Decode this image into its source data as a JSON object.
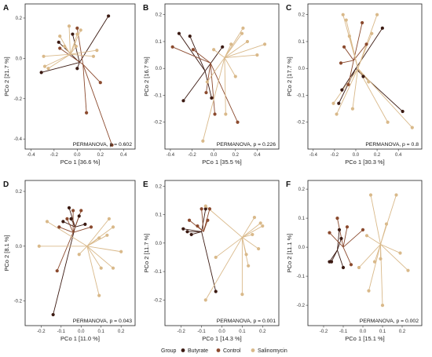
{
  "colors": {
    "Butyrate": "#3b1a12",
    "Control": "#8b4a2e",
    "Salinomycin": "#d9b98a"
  },
  "legend": {
    "title": "Group",
    "items": [
      "Butyrate",
      "Control",
      "Salinomycin"
    ]
  },
  "chart_data": [
    {
      "type": "scatter",
      "letter": "A",
      "xlabel": "PCo 1 [36.6 %]",
      "ylabel": "PCo 2 [21.7 %]",
      "annotation": "PERMANOVA, p = 0.602",
      "xlim": [
        -0.45,
        0.5
      ],
      "ylim": [
        -0.45,
        0.27
      ],
      "xticks": [
        -0.4,
        -0.2,
        0.0,
        0.2,
        0.4
      ],
      "xtick_labels": [
        "-0.4",
        "-0.2",
        "0.0",
        "0.2",
        "0.4"
      ],
      "yticks": [
        -0.4,
        -0.2,
        0.0,
        0.2
      ],
      "ytick_labels": [
        "-0.4",
        "-0.2",
        "0.0",
        "0.2"
      ],
      "groups": [
        {
          "name": "Butyrate",
          "centroid": [
            0.02,
            -0.02
          ],
          "points": [
            [
              0.27,
              0.21
            ],
            [
              -0.04,
              0.12
            ],
            [
              -0.31,
              -0.07
            ],
            [
              -0.16,
              0.08
            ],
            [
              0.0,
              -0.05
            ]
          ]
        },
        {
          "name": "Control",
          "centroid": [
            0.05,
            -0.03
          ],
          "points": [
            [
              0.3,
              -0.43
            ],
            [
              0.0,
              0.15
            ],
            [
              -0.15,
              0.05
            ],
            [
              0.08,
              -0.27
            ],
            [
              0.2,
              -0.12
            ]
          ]
        },
        {
          "name": "Salinomycin",
          "centroid": [
            -0.06,
            0.02
          ],
          "points": [
            [
              -0.25,
              -0.05
            ],
            [
              -0.28,
              -0.04
            ],
            [
              -0.15,
              0.11
            ],
            [
              -0.07,
              0.16
            ],
            [
              0.0,
              0.12
            ],
            [
              0.03,
              0.14
            ],
            [
              0.14,
              0.01
            ],
            [
              0.17,
              0.04
            ],
            [
              -0.11,
              0.06
            ],
            [
              -0.01,
              0.06
            ],
            [
              -0.29,
              0.01
            ]
          ]
        }
      ]
    },
    {
      "type": "scatter",
      "letter": "B",
      "xlabel": "PCo 1 [35.5 %]",
      "ylabel": "PCo 2 [16.7 %]",
      "annotation": "PERMANOVA, p = 0.226",
      "xlim": [
        -0.45,
        0.6
      ],
      "ylim": [
        -0.3,
        0.24
      ],
      "xticks": [
        -0.4,
        -0.2,
        0.0,
        0.2,
        0.4
      ],
      "xtick_labels": [
        "-0.4",
        "-0.2",
        "0.0",
        "0.2",
        "0.4"
      ],
      "yticks": [
        -0.2,
        -0.1,
        0.0,
        0.1,
        0.2
      ],
      "ytick_labels": [
        "-0.2",
        "-0.1",
        "0.0",
        "0.1",
        "0.2"
      ],
      "groups": [
        {
          "name": "Butyrate",
          "centroid": [
            -0.08,
            -0.01
          ],
          "points": [
            [
              -0.32,
              0.13
            ],
            [
              -0.28,
              -0.12
            ],
            [
              -0.22,
              0.12
            ],
            [
              0.08,
              0.08
            ],
            [
              -0.02,
              -0.11
            ]
          ]
        },
        {
          "name": "Control",
          "centroid": [
            -0.03,
            0.02
          ],
          "points": [
            [
              -0.38,
              0.08
            ],
            [
              -0.19,
              0.07
            ],
            [
              0.22,
              -0.2
            ],
            [
              0.01,
              -0.17
            ],
            [
              -0.07,
              -0.09
            ]
          ]
        },
        {
          "name": "Salinomycin",
          "centroid": [
            0.1,
            0.04
          ],
          "points": [
            [
              0.47,
              0.09
            ],
            [
              0.26,
              0.13
            ],
            [
              0.2,
              -0.03
            ],
            [
              0.11,
              -0.17
            ],
            [
              -0.1,
              -0.27
            ],
            [
              0.27,
              0.15
            ],
            [
              0.0,
              0.07
            ],
            [
              0.4,
              0.05
            ],
            [
              0.31,
              0.1
            ],
            [
              -0.06,
              -0.05
            ],
            [
              0.16,
              0.09
            ]
          ]
        }
      ]
    },
    {
      "type": "scatter",
      "letter": "C",
      "xlabel": "PCo 1 [30.3 %]",
      "ylabel": "PCo 2 [17.7 %]",
      "annotation": "PERMANOVA, p = 0.8",
      "xlim": [
        -0.45,
        0.62
      ],
      "ylim": [
        -0.3,
        0.24
      ],
      "xticks": [
        -0.4,
        -0.2,
        0.0,
        0.2,
        0.4
      ],
      "xtick_labels": [
        "-0.4",
        "-0.2",
        "0.0",
        "0.2",
        "0.4"
      ],
      "yticks": [
        -0.2,
        -0.1,
        0.0,
        0.1,
        0.2
      ],
      "ytick_labels": [
        "-0.2",
        "-0.1",
        "0.0",
        "0.1",
        "0.2"
      ],
      "groups": [
        {
          "name": "Butyrate",
          "centroid": [
            0.0,
            0.0
          ],
          "points": [
            [
              -0.16,
              -0.13
            ],
            [
              -0.13,
              -0.08
            ],
            [
              0.25,
              0.15
            ],
            [
              0.44,
              -0.16
            ],
            [
              0.07,
              -0.03
            ]
          ]
        },
        {
          "name": "Control",
          "centroid": [
            -0.02,
            0.03
          ],
          "points": [
            [
              0.06,
              0.17
            ],
            [
              -0.11,
              0.08
            ],
            [
              -0.07,
              -0.06
            ],
            [
              0.1,
              0.09
            ],
            [
              -0.14,
              0.02
            ]
          ]
        },
        {
          "name": "Salinomycin",
          "centroid": [
            0.02,
            0.0
          ],
          "points": [
            [
              0.53,
              -0.22
            ],
            [
              0.2,
              0.2
            ],
            [
              0.15,
              0.13
            ],
            [
              -0.12,
              0.2
            ],
            [
              -0.09,
              0.18
            ],
            [
              -0.21,
              -0.13
            ],
            [
              -0.18,
              -0.17
            ],
            [
              0.12,
              -0.05
            ],
            [
              0.3,
              -0.2
            ],
            [
              -0.06,
              0.12
            ],
            [
              -0.03,
              -0.15
            ]
          ]
        }
      ]
    },
    {
      "type": "scatter",
      "letter": "D",
      "xlabel": "PCo 1 [11.0 %]",
      "ylabel": "PCo 2 [8.1 %]",
      "annotation": "PERMANOVA, p = 0.043",
      "xlim": [
        -0.28,
        0.27
      ],
      "ylim": [
        -0.29,
        0.24
      ],
      "xticks": [
        -0.2,
        -0.1,
        0.0,
        0.1,
        0.2
      ],
      "xtick_labels": [
        "-0.2",
        "-0.1",
        "0.0",
        "0.1",
        "0.2"
      ],
      "yticks": [
        -0.2,
        0.0,
        0.2
      ],
      "ytick_labels": [
        "-0.2",
        "0.0",
        "0.2"
      ],
      "groups": [
        {
          "name": "Butyrate",
          "centroid": [
            -0.03,
            0.07
          ],
          "points": [
            [
              -0.06,
              0.14
            ],
            [
              -0.09,
              0.09
            ],
            [
              -0.05,
              0.1
            ],
            [
              -0.01,
              0.11
            ],
            [
              0.02,
              0.08
            ],
            [
              -0.14,
              -0.25
            ]
          ]
        },
        {
          "name": "Control",
          "centroid": [
            -0.04,
            0.05
          ],
          "points": [
            [
              -0.11,
              0.07
            ],
            [
              -0.04,
              0.13
            ],
            [
              -0.07,
              0.1
            ],
            [
              0.0,
              0.13
            ],
            [
              0.05,
              0.07
            ],
            [
              -0.12,
              -0.09
            ]
          ]
        },
        {
          "name": "Salinomycin",
          "centroid": [
            0.03,
            0.0
          ],
          "points": [
            [
              -0.17,
              0.09
            ],
            [
              -0.21,
              0.0
            ],
            [
              0.14,
              0.1
            ],
            [
              0.2,
              -0.02
            ],
            [
              0.1,
              -0.08
            ],
            [
              0.16,
              -0.08
            ],
            [
              0.09,
              0.03
            ],
            [
              0.09,
              -0.18
            ],
            [
              0.16,
              0.07
            ],
            [
              -0.01,
              -0.03
            ],
            [
              0.13,
              0.04
            ]
          ]
        }
      ]
    },
    {
      "type": "scatter",
      "letter": "E",
      "xlabel": "PCo 1 [14.3 %]",
      "ylabel": "PCo 2 [11.7 %]",
      "annotation": "PERMANOVA, p = 0.001",
      "xlim": [
        -0.28,
        0.28
      ],
      "ylim": [
        -0.29,
        0.22
      ],
      "xticks": [
        -0.2,
        -0.1,
        0.0,
        0.1,
        0.2
      ],
      "xtick_labels": [
        "-0.2",
        "-0.1",
        "0.0",
        "0.1",
        "0.2"
      ],
      "yticks": [
        -0.2,
        -0.1,
        0.0,
        0.1,
        0.2
      ],
      "ytick_labels": [
        "-0.2",
        "-0.1",
        "0.0",
        "0.1",
        "0.2"
      ],
      "groups": [
        {
          "name": "Butyrate",
          "centroid": [
            -0.1,
            0.04
          ],
          "points": [
            [
              -0.19,
              0.05
            ],
            [
              -0.17,
              0.04
            ],
            [
              -0.15,
              0.03
            ],
            [
              -0.08,
              0.12
            ],
            [
              -0.03,
              -0.17
            ]
          ]
        },
        {
          "name": "Control",
          "centroid": [
            -0.09,
            0.04
          ],
          "points": [
            [
              -0.16,
              0.08
            ],
            [
              -0.1,
              0.12
            ],
            [
              -0.06,
              0.12
            ],
            [
              -0.12,
              0.06
            ],
            [
              -0.07,
              0.08
            ]
          ]
        },
        {
          "name": "Salinomycin",
          "centroid": [
            0.1,
            0.02
          ],
          "points": [
            [
              0.16,
              0.09
            ],
            [
              0.2,
              0.06
            ],
            [
              0.15,
              0.03
            ],
            [
              0.18,
              -0.02
            ],
            [
              0.12,
              -0.04
            ],
            [
              0.1,
              -0.18
            ],
            [
              0.13,
              -0.08
            ],
            [
              -0.08,
              -0.2
            ],
            [
              -0.03,
              -0.05
            ],
            [
              -0.08,
              0.13
            ],
            [
              0.19,
              0.07
            ]
          ]
        }
      ]
    },
    {
      "type": "scatter",
      "letter": "F",
      "xlabel": "PCo 1 [15.1 %]",
      "ylabel": "PCo 2 [11.1 %]",
      "annotation": "PERMANOVA, p = 0.002",
      "xlim": [
        -0.28,
        0.3
      ],
      "ylim": [
        -0.27,
        0.23
      ],
      "xticks": [
        -0.2,
        -0.1,
        0.0,
        0.1,
        0.2
      ],
      "xtick_labels": [
        "-0.2",
        "-0.1",
        "0.0",
        "0.1",
        "0.2"
      ],
      "yticks": [
        -0.2,
        -0.1,
        0.0,
        0.1,
        0.2
      ],
      "ytick_labels": [
        "-0.2",
        "-0.1",
        "0.0",
        "0.1",
        "0.2"
      ],
      "groups": [
        {
          "name": "Butyrate",
          "centroid": [
            -0.13,
            -0.01
          ],
          "points": [
            [
              -0.16,
              -0.05
            ],
            [
              -0.12,
              0.06
            ],
            [
              -0.1,
              -0.07
            ],
            [
              -0.11,
              0.03
            ],
            [
              -0.17,
              -0.05
            ]
          ]
        },
        {
          "name": "Control",
          "centroid": [
            -0.1,
            0.0
          ],
          "points": [
            [
              -0.17,
              0.05
            ],
            [
              -0.13,
              0.1
            ],
            [
              -0.08,
              0.07
            ],
            [
              -0.06,
              -0.06
            ],
            [
              0.0,
              0.06
            ]
          ]
        },
        {
          "name": "Salinomycin",
          "centroid": [
            0.09,
            0.01
          ],
          "points": [
            [
              0.04,
              0.18
            ],
            [
              0.17,
              0.18
            ],
            [
              0.12,
              0.08
            ],
            [
              0.23,
              -0.08
            ],
            [
              0.19,
              -0.02
            ],
            [
              0.02,
              0.04
            ],
            [
              0.06,
              -0.05
            ],
            [
              0.03,
              -0.15
            ],
            [
              -0.02,
              -0.07
            ],
            [
              0.09,
              -0.04
            ],
            [
              0.1,
              -0.2
            ]
          ]
        }
      ]
    }
  ]
}
